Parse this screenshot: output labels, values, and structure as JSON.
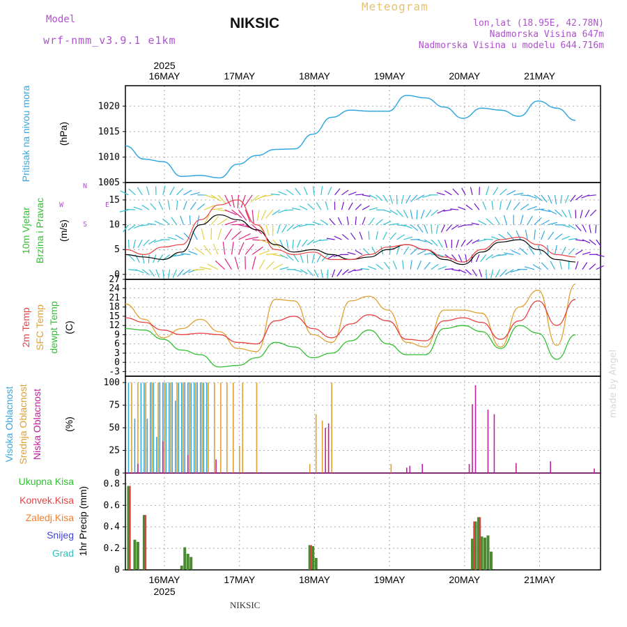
{
  "header": {
    "model_label": "Model",
    "model_name": "wrf-nmm_v3.9.1 e1km",
    "station": "NIKSIC",
    "title": "Meteogram",
    "coords": "lon,lat (18.95E, 42.78N)",
    "elevation": "Nadmorska Visina 647m",
    "model_elevation": "Nadmorska Visina u modelu 644.716m"
  },
  "credit": "made by Angel",
  "bottom_station": "NIKSIC",
  "colors": {
    "pressure": "#33a8e0",
    "temp2m": "#e84040",
    "sfc": "#e0a030",
    "dewpt": "#30c030",
    "high_cloud": "#33a8e0",
    "mid_cloud": "#e0a030",
    "low_cloud": "#c020a0",
    "precip": "#4a8a30",
    "conv": "#e84040"
  },
  "chart_data": [
    {
      "type": "line",
      "name": "pressure-panel",
      "ylabel": [
        "Pritisak na nivou mora",
        "(hPa)"
      ],
      "ylim": [
        1005,
        1024
      ],
      "yticks": [
        1005,
        1010,
        1015,
        1020
      ],
      "x_days": [
        "16MAY",
        "17MAY",
        "18MAY",
        "19MAY",
        "20MAY",
        "21MAY"
      ],
      "year": "2025",
      "x": [
        0,
        6,
        12,
        18,
        24,
        30,
        36,
        42,
        48,
        54,
        60,
        66,
        72,
        78,
        84,
        90,
        96,
        102,
        108,
        114,
        120,
        126,
        132,
        138,
        144
      ],
      "series": [
        {
          "values": [
            1012.2,
            1009.6,
            1009.1,
            1006.2,
            1006.4,
            1005.9,
            1008.6,
            1010.3,
            1011.5,
            1011.6,
            1014.5,
            1017.8,
            1019.2,
            1019.0,
            1019.0,
            1022.1,
            1021.6,
            1019.8,
            1017.6,
            1019.6,
            1019.2,
            1018.0,
            1021.0,
            1019.6,
            1017.2
          ]
        }
      ]
    },
    {
      "type": "line",
      "name": "wind-panel",
      "ylabel": [
        "10m Vjetar",
        "Brzina i Pravac",
        "(m/s)"
      ],
      "compass": [
        "N",
        "E",
        "S",
        "W"
      ],
      "ylim": [
        -1,
        18.5
      ],
      "yticks": [
        0,
        5,
        10,
        15
      ],
      "x": [
        0,
        6,
        12,
        18,
        24,
        30,
        36,
        42,
        48,
        54,
        60,
        66,
        72,
        78,
        84,
        90,
        96,
        102,
        108,
        114,
        120,
        126,
        132,
        138,
        144
      ],
      "series": [
        {
          "values": [
            4.0,
            3.5,
            3.0,
            4.5,
            10.0,
            12.0,
            11.0,
            9.0,
            6.0,
            4.5,
            5.0,
            4.0,
            3.0,
            3.5,
            5.0,
            6.0,
            5.0,
            3.0,
            2.0,
            4.5,
            6.5,
            7.0,
            5.0,
            3.0,
            2.5
          ]
        },
        {
          "values": [
            5.0,
            4.0,
            5.5,
            6.0,
            11.0,
            14.0,
            15.0,
            10.0,
            5.0,
            4.0,
            4.5,
            3.0,
            3.0,
            4.0,
            5.5,
            6.0,
            5.0,
            3.5,
            2.5,
            5.0,
            7.0,
            7.5,
            6.0,
            4.0,
            3.5
          ]
        }
      ]
    },
    {
      "type": "line",
      "name": "temperature-panel",
      "ylabel": [
        "2m Temp",
        "SFC Temp",
        "dewpt Temp",
        "(C)"
      ],
      "ylim": [
        -4.5,
        27
      ],
      "yticks": [
        -3,
        0,
        3,
        6,
        9,
        12,
        15,
        18,
        21,
        24,
        27
      ],
      "x": [
        0,
        6,
        12,
        18,
        24,
        30,
        36,
        42,
        48,
        54,
        60,
        66,
        72,
        78,
        84,
        90,
        96,
        102,
        108,
        114,
        120,
        126,
        132,
        138,
        144
      ],
      "series": [
        {
          "values": [
            14.5,
            13.0,
            10.5,
            9.0,
            9.5,
            9.0,
            6.5,
            6.0,
            13.5,
            15.0,
            11.0,
            8.0,
            12.5,
            15.5,
            13.5,
            7.5,
            7.0,
            13.5,
            14.5,
            13.0,
            7.5,
            13.5,
            20.0,
            12.0,
            20.5
          ]
        },
        {
          "values": [
            19.0,
            14.0,
            8.0,
            11.0,
            14.0,
            10.0,
            4.5,
            3.5,
            20.5,
            20.0,
            9.0,
            6.5,
            20.0,
            21.5,
            17.0,
            6.5,
            5.0,
            17.0,
            17.0,
            16.0,
            5.0,
            18.0,
            23.5,
            5.5,
            25.5
          ]
        },
        {
          "values": [
            11.0,
            10.5,
            7.5,
            4.0,
            2.5,
            -1.5,
            -1.0,
            1.5,
            6.5,
            5.0,
            1.5,
            3.0,
            7.0,
            10.5,
            6.0,
            2.5,
            2.5,
            11.0,
            12.0,
            10.0,
            4.5,
            12.0,
            9.5,
            1.0,
            9.0
          ]
        }
      ]
    },
    {
      "type": "bar",
      "name": "cloud-panel",
      "ylabel": [
        "Visoka Oblacnost",
        "Srednja Oblacnost",
        "Niska Oblacnost",
        "(%)"
      ],
      "ylim": [
        0,
        107
      ],
      "yticks": [
        0,
        25,
        50,
        75,
        100
      ],
      "series": [
        {
          "x": [
            1,
            3,
            5,
            6,
            7,
            8,
            9,
            10,
            11,
            12,
            13,
            14,
            15,
            16,
            17,
            18,
            19,
            20,
            21,
            22,
            23,
            24,
            25,
            26
          ],
          "values": [
            100,
            60,
            100,
            100,
            60,
            100,
            100,
            40,
            100,
            100,
            100,
            100,
            100,
            80,
            100,
            100,
            100,
            100,
            100,
            100,
            100,
            100,
            100,
            100
          ]
        },
        {
          "x": [
            2,
            4,
            6.5,
            8.5,
            10.5,
            12.5,
            14.5,
            16.5,
            18.5,
            20.5,
            22.5,
            24.5,
            26.5,
            28.5,
            30.5,
            32.5,
            34.5,
            36.5,
            37.5,
            42,
            59,
            61,
            63,
            65,
            66,
            85
          ],
          "values": [
            100,
            100,
            100,
            100,
            100,
            100,
            100,
            100,
            100,
            100,
            100,
            100,
            100,
            100,
            100,
            100,
            100,
            30,
            100,
            100,
            10,
            65,
            58,
            48,
            100,
            10
          ]
        },
        {
          "x": [
            4,
            12,
            20,
            29,
            64,
            65,
            90,
            91,
            95,
            110,
            111,
            112,
            116,
            118,
            125,
            136,
            150
          ],
          "values": [
            10,
            35,
            20,
            15,
            50,
            55,
            6,
            8,
            10,
            10,
            76,
            97,
            70,
            65,
            11,
            13,
            5
          ]
        }
      ]
    },
    {
      "type": "bar",
      "name": "precip-panel",
      "ylabel": [
        "Ukupna Kisa",
        "Konvek.Kisa",
        "Zaledj.Kisa",
        "Snijeg",
        "Grad",
        "1hr Precip (mm)"
      ],
      "ylim": [
        0,
        0.9
      ],
      "yticks": [
        0,
        0.2,
        0.4,
        0.6,
        0.8
      ],
      "series": [
        {
          "name": "Ukupna Kisa",
          "x": [
            1,
            3,
            4,
            6,
            18,
            19,
            20,
            21,
            22,
            59,
            60,
            61,
            111,
            112,
            113,
            114,
            115,
            116,
            117
          ],
          "values": [
            0.78,
            0.28,
            0.26,
            0.51,
            0.04,
            0.21,
            0.15,
            0.12,
            0.0,
            0.23,
            0.22,
            0.11,
            0.29,
            0.45,
            0.49,
            0.31,
            0.3,
            0.32,
            0.17
          ]
        },
        {
          "name": "Konvek.Kisa",
          "x": [
            1.5,
            6.5,
            59.5,
            111.5,
            113.5
          ],
          "values": [
            0.78,
            0.51,
            0.23,
            0.45,
            0.49
          ]
        }
      ],
      "x_days": [
        "16MAY",
        "17MAY",
        "18MAY",
        "19MAY",
        "20MAY",
        "21MAY"
      ],
      "year": "2025"
    }
  ]
}
